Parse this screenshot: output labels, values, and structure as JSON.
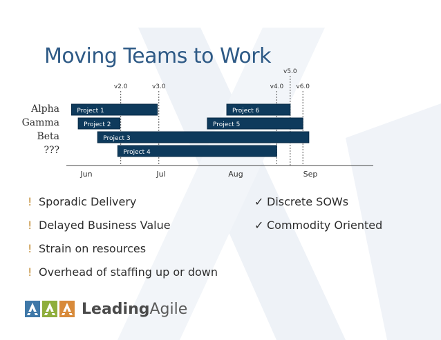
{
  "slide": {
    "title": "Moving Teams to Work"
  },
  "chart_data": {
    "type": "gantt",
    "teams": [
      "Alpha",
      "Gamma",
      "Beta",
      "???"
    ],
    "months": [
      "Jun",
      "Jul",
      "Aug",
      "Sep"
    ],
    "projects": [
      {
        "label": "Project 1",
        "team": "Alpha",
        "start": 0.05,
        "end": 1.2
      },
      {
        "label": "Project 6",
        "team": "Alpha",
        "start": 2.13,
        "end": 2.98
      },
      {
        "label": "Project 2",
        "team": "Gamma",
        "start": 0.14,
        "end": 0.7
      },
      {
        "label": "Project 5",
        "team": "Gamma",
        "start": 1.87,
        "end": 3.15
      },
      {
        "label": "Project 3",
        "team": "Beta",
        "start": 0.4,
        "end": 3.23
      },
      {
        "label": "Project 4",
        "team": "???",
        "start": 0.67,
        "end": 2.8
      }
    ],
    "releases": [
      {
        "label": "v2.0",
        "at": 0.71
      },
      {
        "label": "v3.0",
        "at": 1.22
      },
      {
        "label": "v4.0",
        "at": 2.8
      },
      {
        "label": "v5.0",
        "at": 2.98
      },
      {
        "label": "v6.0",
        "at": 3.15
      }
    ]
  },
  "bullets_left": [
    {
      "mark": "!",
      "text": "Sporadic Delivery"
    },
    {
      "mark": "!",
      "text": "Delayed Business Value"
    },
    {
      "mark": "!",
      "text": "Strain on resources"
    },
    {
      "mark": "!",
      "text": "Overhead of staffing up or down"
    }
  ],
  "bullets_right": [
    {
      "mark": "✓",
      "text": "Discrete SOWs"
    },
    {
      "mark": "✓",
      "text": "Commodity Oriented"
    }
  ],
  "logo": {
    "strong": "Leading",
    "rest": "Agile"
  },
  "colors": {
    "bar": "#0e3a5c",
    "bar_border": "#082a45",
    "title": "#2e5a86",
    "bullet_mark": "#c0882e",
    "watermark": "#eef2f7"
  }
}
